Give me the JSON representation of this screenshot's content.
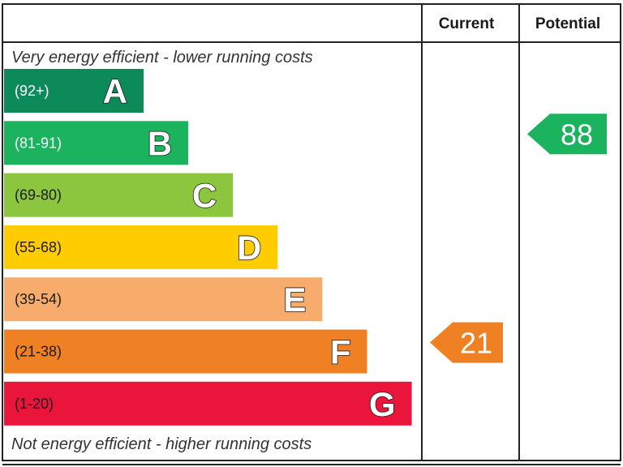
{
  "chart_data": {
    "type": "bar",
    "headers": {
      "current": "Current",
      "potential": "Potential"
    },
    "top_caption": "Very energy efficient - lower running costs",
    "bottom_caption": "Not energy efficient - higher running costs",
    "bands": [
      {
        "letter": "A",
        "range": "(92+)",
        "color": "#0c8a5a",
        "range_color": "#ffffff"
      },
      {
        "letter": "B",
        "range": "(81-91)",
        "color": "#1bb35e",
        "range_color": "#ffffff"
      },
      {
        "letter": "C",
        "range": "(69-80)",
        "color": "#8cc63f",
        "range_color": "#1a1a1a"
      },
      {
        "letter": "D",
        "range": "(55-68)",
        "color": "#ffcc00",
        "range_color": "#1a1a1a"
      },
      {
        "letter": "E",
        "range": "(39-54)",
        "color": "#f7ac6b",
        "range_color": "#1a1a1a"
      },
      {
        "letter": "F",
        "range": "(21-38)",
        "color": "#ef8023",
        "range_color": "#1a1a1a"
      },
      {
        "letter": "G",
        "range": "(1-20)",
        "color": "#e9153b",
        "range_color": "#1a1a1a"
      }
    ],
    "current": {
      "value": 21,
      "band": "F",
      "color": "#ef8023"
    },
    "potential": {
      "value": 88,
      "band": "B",
      "color": "#1bb35e"
    }
  }
}
